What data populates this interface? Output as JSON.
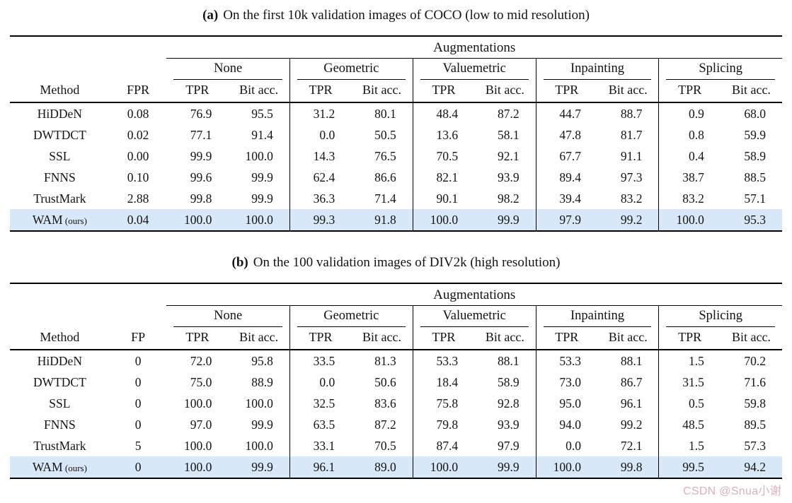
{
  "watermark": "CSDN @Snua小谢",
  "watermark_color": "#d2a6b2",
  "highlight_color": "#d9e8f8",
  "tables": [
    {
      "caption_label": "(a)",
      "caption_text": "On the first 10k validation images of COCO (low to mid resolution)",
      "span_header": "Augmentations",
      "groups": [
        "None",
        "Geometric",
        "Valuemetric",
        "Inpainting",
        "Splicing"
      ],
      "col_method": "Method",
      "col_fpr": "FPR",
      "sub_cols": [
        "TPR",
        "Bit acc."
      ],
      "rows": [
        {
          "method": "HiDDeN",
          "fpr": "0.08",
          "values": [
            "76.9",
            "95.5",
            "31.2",
            "80.1",
            "48.4",
            "87.2",
            "44.7",
            "88.7",
            "0.9",
            "68.0"
          ],
          "highlight": false
        },
        {
          "method": "DWTDCT",
          "fpr": "0.02",
          "values": [
            "77.1",
            "91.4",
            "0.0",
            "50.5",
            "13.6",
            "58.1",
            "47.8",
            "81.7",
            "0.8",
            "59.9"
          ],
          "highlight": false
        },
        {
          "method": "SSL",
          "fpr": "0.00",
          "values": [
            "99.9",
            "100.0",
            "14.3",
            "76.5",
            "70.5",
            "92.1",
            "67.7",
            "91.1",
            "0.4",
            "58.9"
          ],
          "highlight": false
        },
        {
          "method": "FNNS",
          "fpr": "0.10",
          "values": [
            "99.6",
            "99.9",
            "62.4",
            "86.6",
            "82.1",
            "93.9",
            "89.4",
            "97.3",
            "38.7",
            "88.5"
          ],
          "highlight": false
        },
        {
          "method": "TrustMark",
          "fpr": "2.88",
          "values": [
            "99.8",
            "99.9",
            "36.3",
            "71.4",
            "90.1",
            "98.2",
            "39.4",
            "83.2",
            "83.2",
            "57.1"
          ],
          "highlight": false
        },
        {
          "method": "WAM",
          "method_suffix": "(ours)",
          "fpr": "0.04",
          "values": [
            "100.0",
            "100.0",
            "99.3",
            "91.8",
            "100.0",
            "99.9",
            "97.9",
            "99.2",
            "100.0",
            "95.3"
          ],
          "highlight": true
        }
      ]
    },
    {
      "caption_label": "(b)",
      "caption_text": "On the 100 validation images of DIV2k (high resolution)",
      "span_header": "Augmentations",
      "groups": [
        "None",
        "Geometric",
        "Valuemetric",
        "Inpainting",
        "Splicing"
      ],
      "col_method": "Method",
      "col_fpr": "FP",
      "sub_cols": [
        "TPR",
        "Bit acc."
      ],
      "rows": [
        {
          "method": "HiDDeN",
          "fpr": "0",
          "values": [
            "72.0",
            "95.8",
            "33.5",
            "81.3",
            "53.3",
            "88.1",
            "53.3",
            "88.1",
            "1.5",
            "70.2"
          ],
          "highlight": false
        },
        {
          "method": "DWTDCT",
          "fpr": "0",
          "values": [
            "75.0",
            "88.9",
            "0.0",
            "50.6",
            "18.4",
            "58.9",
            "73.0",
            "86.7",
            "31.5",
            "71.6"
          ],
          "highlight": false
        },
        {
          "method": "SSL",
          "fpr": "0",
          "values": [
            "100.0",
            "100.0",
            "32.5",
            "83.6",
            "75.8",
            "92.8",
            "95.0",
            "96.1",
            "0.5",
            "59.8"
          ],
          "highlight": false
        },
        {
          "method": "FNNS",
          "fpr": "0",
          "values": [
            "97.0",
            "99.9",
            "63.5",
            "87.2",
            "79.8",
            "93.9",
            "94.0",
            "99.2",
            "48.5",
            "89.5"
          ],
          "highlight": false
        },
        {
          "method": "TrustMark",
          "fpr": "5",
          "values": [
            "100.0",
            "100.0",
            "33.1",
            "70.5",
            "87.4",
            "97.9",
            "0.0",
            "72.1",
            "1.5",
            "57.3"
          ],
          "highlight": false
        },
        {
          "method": "WAM",
          "method_suffix": "(ours)",
          "fpr": "0",
          "values": [
            "100.0",
            "99.9",
            "96.1",
            "89.0",
            "100.0",
            "99.9",
            "100.0",
            "99.8",
            "99.5",
            "94.2"
          ],
          "highlight": true
        }
      ]
    }
  ]
}
